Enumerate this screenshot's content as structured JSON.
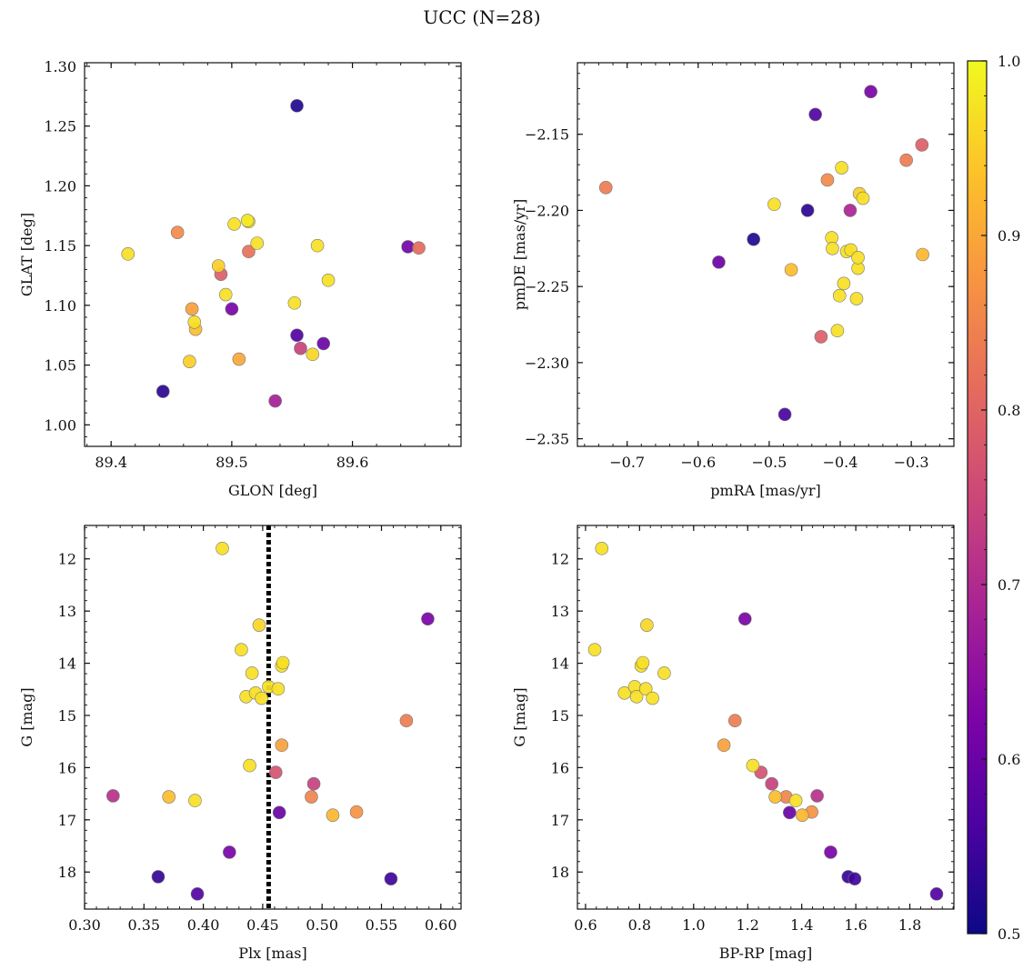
{
  "figure": {
    "title": "UCC (N=28)"
  },
  "colorbar": {
    "min": 0.5,
    "max": 1.0,
    "ticks": [
      "0.5",
      "0.6",
      "0.7",
      "0.8",
      "0.9",
      "1.0"
    ],
    "colormap": "plasma",
    "range": [
      0.5,
      1.0
    ]
  },
  "chart_data": [
    {
      "type": "scatter",
      "xlabel": "GLON [deg]",
      "ylabel": "GLAT [deg]",
      "xlim": [
        89.378,
        89.69
      ],
      "ylim": [
        0.982,
        1.303
      ],
      "xticks": [
        89.4,
        89.5,
        89.6
      ],
      "xminor": 0.02,
      "xdec": 1,
      "yticks": [
        1.0,
        1.05,
        1.1,
        1.15,
        1.2,
        1.25,
        1.3
      ],
      "yminor": 0.01,
      "ydec": 2,
      "invert_y": false,
      "points": [
        {
          "x": 89.414,
          "y": 1.143,
          "c": 0.97
        },
        {
          "x": 89.443,
          "y": 1.028,
          "c": 0.53
        },
        {
          "x": 89.455,
          "y": 1.161,
          "c": 0.86
        },
        {
          "x": 89.465,
          "y": 1.053,
          "c": 0.95
        },
        {
          "x": 89.467,
          "y": 1.097,
          "c": 0.89
        },
        {
          "x": 89.469,
          "y": 1.086,
          "c": 0.97
        },
        {
          "x": 89.47,
          "y": 1.08,
          "c": 0.93
        },
        {
          "x": 89.489,
          "y": 1.133,
          "c": 0.95
        },
        {
          "x": 89.491,
          "y": 1.126,
          "c": 0.79
        },
        {
          "x": 89.495,
          "y": 1.109,
          "c": 0.97
        },
        {
          "x": 89.5,
          "y": 1.097,
          "c": 0.62
        },
        {
          "x": 89.502,
          "y": 1.168,
          "c": 0.97
        },
        {
          "x": 89.506,
          "y": 1.055,
          "c": 0.9
        },
        {
          "x": 89.513,
          "y": 1.171,
          "c": 0.98
        },
        {
          "x": 89.514,
          "y": 1.17,
          "c": 0.97
        },
        {
          "x": 89.514,
          "y": 1.145,
          "c": 0.82
        },
        {
          "x": 89.521,
          "y": 1.152,
          "c": 0.97
        },
        {
          "x": 89.536,
          "y": 1.02,
          "c": 0.68
        },
        {
          "x": 89.552,
          "y": 1.102,
          "c": 0.97
        },
        {
          "x": 89.554,
          "y": 1.267,
          "c": 0.52
        },
        {
          "x": 89.554,
          "y": 1.075,
          "c": 0.57
        },
        {
          "x": 89.557,
          "y": 1.064,
          "c": 0.74
        },
        {
          "x": 89.567,
          "y": 1.059,
          "c": 0.96
        },
        {
          "x": 89.571,
          "y": 1.15,
          "c": 0.97
        },
        {
          "x": 89.576,
          "y": 1.068,
          "c": 0.6
        },
        {
          "x": 89.58,
          "y": 1.121,
          "c": 0.97
        },
        {
          "x": 89.646,
          "y": 1.149,
          "c": 0.61
        },
        {
          "x": 89.655,
          "y": 1.148,
          "c": 0.81
        }
      ]
    },
    {
      "type": "scatter",
      "xlabel": "pmRA [mas/yr]",
      "ylabel": "pmDE [mas/yr]",
      "xlim": [
        -0.77,
        -0.24
      ],
      "ylim": [
        -2.355,
        -2.103
      ],
      "xticks": [
        -0.7,
        -0.6,
        -0.5,
        -0.4,
        -0.3
      ],
      "xminor": 0.02,
      "xdec": 1,
      "yticks": [
        -2.35,
        -2.3,
        -2.25,
        -2.2,
        -2.15
      ],
      "yminor": 0.01,
      "ydec": 2,
      "invert_y": false,
      "points": [
        {
          "x": -0.73,
          "y": -2.185,
          "c": 0.84
        },
        {
          "x": -0.571,
          "y": -2.234,
          "c": 0.6
        },
        {
          "x": -0.522,
          "y": -2.219,
          "c": 0.52
        },
        {
          "x": -0.493,
          "y": -2.196,
          "c": 0.97
        },
        {
          "x": -0.478,
          "y": -2.334,
          "c": 0.56
        },
        {
          "x": -0.469,
          "y": -2.239,
          "c": 0.93
        },
        {
          "x": -0.446,
          "y": -2.2,
          "c": 0.53
        },
        {
          "x": -0.435,
          "y": -2.137,
          "c": 0.57
        },
        {
          "x": -0.427,
          "y": -2.283,
          "c": 0.79
        },
        {
          "x": -0.418,
          "y": -2.18,
          "c": 0.86
        },
        {
          "x": -0.412,
          "y": -2.218,
          "c": 0.97
        },
        {
          "x": -0.411,
          "y": -2.225,
          "c": 0.97
        },
        {
          "x": -0.404,
          "y": -2.279,
          "c": 0.97
        },
        {
          "x": -0.401,
          "y": -2.256,
          "c": 0.97
        },
        {
          "x": -0.398,
          "y": -2.172,
          "c": 0.97
        },
        {
          "x": -0.395,
          "y": -2.248,
          "c": 0.97
        },
        {
          "x": -0.391,
          "y": -2.227,
          "c": 0.97
        },
        {
          "x": -0.386,
          "y": -2.2,
          "c": 0.69
        },
        {
          "x": -0.385,
          "y": -2.226,
          "c": 0.97
        },
        {
          "x": -0.377,
          "y": -2.258,
          "c": 0.97
        },
        {
          "x": -0.375,
          "y": -2.238,
          "c": 0.97
        },
        {
          "x": -0.375,
          "y": -2.231,
          "c": 0.97
        },
        {
          "x": -0.373,
          "y": -2.189,
          "c": 0.95
        },
        {
          "x": -0.368,
          "y": -2.192,
          "c": 0.97
        },
        {
          "x": -0.357,
          "y": -2.122,
          "c": 0.62
        },
        {
          "x": -0.307,
          "y": -2.167,
          "c": 0.84
        },
        {
          "x": -0.285,
          "y": -2.157,
          "c": 0.79
        },
        {
          "x": -0.284,
          "y": -2.229,
          "c": 0.92
        }
      ]
    },
    {
      "type": "scatter",
      "xlabel": "Plx [mas]",
      "ylabel": "G [mag]",
      "xlim": [
        0.3,
        0.617
      ],
      "ylim": [
        18.71,
        11.36
      ],
      "xticks": [
        0.3,
        0.35,
        0.4,
        0.45,
        0.5,
        0.55,
        0.6
      ],
      "xminor": 0.01,
      "xdec": 2,
      "yticks": [
        12,
        13,
        14,
        15,
        16,
        17,
        18
      ],
      "yminor": 0.2,
      "ydec": 0,
      "invert_y": true,
      "vline": 0.455,
      "points": [
        {
          "x": 0.324,
          "y": 16.54,
          "c": 0.71
        },
        {
          "x": 0.362,
          "y": 18.09,
          "c": 0.54
        },
        {
          "x": 0.371,
          "y": 16.56,
          "c": 0.93
        },
        {
          "x": 0.393,
          "y": 16.63,
          "c": 0.97
        },
        {
          "x": 0.395,
          "y": 18.42,
          "c": 0.57
        },
        {
          "x": 0.416,
          "y": 11.8,
          "c": 0.97
        },
        {
          "x": 0.422,
          "y": 17.62,
          "c": 0.62
        },
        {
          "x": 0.432,
          "y": 13.74,
          "c": 0.97
        },
        {
          "x": 0.436,
          "y": 14.64,
          "c": 0.97
        },
        {
          "x": 0.439,
          "y": 15.96,
          "c": 0.97
        },
        {
          "x": 0.441,
          "y": 14.19,
          "c": 0.97
        },
        {
          "x": 0.444,
          "y": 14.57,
          "c": 0.97
        },
        {
          "x": 0.447,
          "y": 13.27,
          "c": 0.96
        },
        {
          "x": 0.449,
          "y": 14.67,
          "c": 0.97
        },
        {
          "x": 0.455,
          "y": 14.45,
          "c": 0.97
        },
        {
          "x": 0.461,
          "y": 16.09,
          "c": 0.77
        },
        {
          "x": 0.463,
          "y": 14.49,
          "c": 0.97
        },
        {
          "x": 0.464,
          "y": 16.86,
          "c": 0.6
        },
        {
          "x": 0.466,
          "y": 14.05,
          "c": 0.97
        },
        {
          "x": 0.466,
          "y": 15.57,
          "c": 0.89
        },
        {
          "x": 0.467,
          "y": 13.99,
          "c": 0.97
        },
        {
          "x": 0.491,
          "y": 16.56,
          "c": 0.85
        },
        {
          "x": 0.493,
          "y": 16.31,
          "c": 0.74
        },
        {
          "x": 0.509,
          "y": 16.91,
          "c": 0.92
        },
        {
          "x": 0.529,
          "y": 16.85,
          "c": 0.87
        },
        {
          "x": 0.558,
          "y": 18.13,
          "c": 0.55
        },
        {
          "x": 0.571,
          "y": 15.1,
          "c": 0.84
        },
        {
          "x": 0.589,
          "y": 13.15,
          "c": 0.62
        }
      ]
    },
    {
      "type": "scatter",
      "xlabel": "BP-RP [mag]",
      "ylabel": "G [mag]",
      "xlim": [
        0.57,
        1.963
      ],
      "ylim": [
        18.71,
        11.36
      ],
      "xticks": [
        0.6,
        0.8,
        1.0,
        1.2,
        1.4,
        1.6,
        1.8
      ],
      "xminor": 0.04,
      "xdec": 1,
      "yticks": [
        12,
        13,
        14,
        15,
        16,
        17,
        18
      ],
      "yminor": 0.2,
      "ydec": 0,
      "invert_y": true,
      "points": [
        {
          "x": 0.634,
          "y": 13.74,
          "c": 0.97
        },
        {
          "x": 0.66,
          "y": 11.8,
          "c": 0.97
        },
        {
          "x": 0.744,
          "y": 14.57,
          "c": 0.97
        },
        {
          "x": 0.782,
          "y": 14.45,
          "c": 0.97
        },
        {
          "x": 0.789,
          "y": 14.64,
          "c": 0.97
        },
        {
          "x": 0.806,
          "y": 14.05,
          "c": 0.97
        },
        {
          "x": 0.812,
          "y": 13.99,
          "c": 0.97
        },
        {
          "x": 0.823,
          "y": 14.49,
          "c": 0.97
        },
        {
          "x": 0.827,
          "y": 13.27,
          "c": 0.96
        },
        {
          "x": 0.848,
          "y": 14.67,
          "c": 0.97
        },
        {
          "x": 0.891,
          "y": 14.19,
          "c": 0.97
        },
        {
          "x": 1.112,
          "y": 15.57,
          "c": 0.89
        },
        {
          "x": 1.153,
          "y": 15.1,
          "c": 0.84
        },
        {
          "x": 1.19,
          "y": 13.15,
          "c": 0.62
        },
        {
          "x": 1.219,
          "y": 15.96,
          "c": 0.97
        },
        {
          "x": 1.249,
          "y": 16.09,
          "c": 0.77
        },
        {
          "x": 1.289,
          "y": 16.31,
          "c": 0.74
        },
        {
          "x": 1.302,
          "y": 16.56,
          "c": 0.93
        },
        {
          "x": 1.342,
          "y": 16.56,
          "c": 0.85
        },
        {
          "x": 1.355,
          "y": 16.86,
          "c": 0.6
        },
        {
          "x": 1.378,
          "y": 16.63,
          "c": 0.97
        },
        {
          "x": 1.402,
          "y": 16.91,
          "c": 0.92
        },
        {
          "x": 1.437,
          "y": 16.85,
          "c": 0.87
        },
        {
          "x": 1.457,
          "y": 16.54,
          "c": 0.71
        },
        {
          "x": 1.507,
          "y": 17.62,
          "c": 0.62
        },
        {
          "x": 1.572,
          "y": 18.09,
          "c": 0.54
        },
        {
          "x": 1.596,
          "y": 18.13,
          "c": 0.55
        },
        {
          "x": 1.899,
          "y": 18.42,
          "c": 0.57
        }
      ]
    }
  ]
}
